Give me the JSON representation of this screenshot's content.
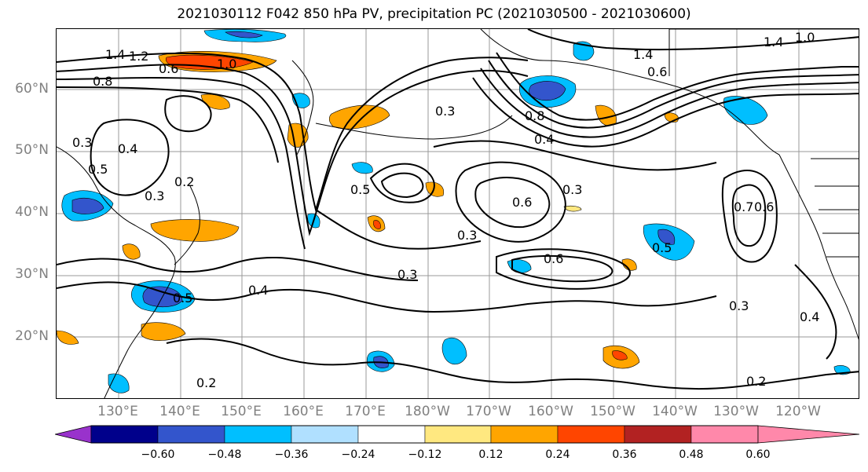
{
  "title": "2021030112 F042 850 hPa PV, precipitation PC (2021030500 - 2021030600)",
  "lat_labels": [
    "60°N",
    "50°N",
    "40°N",
    "30°N",
    "20°N"
  ],
  "lon_labels": [
    "130°E",
    "140°E",
    "150°E",
    "160°E",
    "170°E",
    "180°W",
    "170°W",
    "160°W",
    "150°W",
    "140°W",
    "130°W",
    "120°W"
  ],
  "contour_labels": [
    "1.4",
    "1.2",
    "0.8",
    "1.0",
    "0.6",
    "0.4",
    "0.3",
    "0.5",
    "0.2",
    "0.3",
    "0.4",
    "0.5",
    "0.6",
    "0.3",
    "0.4",
    "1.4",
    "0.6",
    "0.8",
    "0.3",
    "0.5",
    "0.6",
    "0.3",
    "0.7",
    "0.6",
    "0.5",
    "0.3",
    "0.2",
    "1.0",
    "1.4",
    "0.4",
    "0.3",
    "0.2"
  ],
  "colorbar": {
    "ticks": [
      "−0.60",
      "−0.48",
      "−0.36",
      "−0.24",
      "−0.12",
      "0.12",
      "0.24",
      "0.36",
      "0.48",
      "0.60"
    ],
    "colors": [
      "#9932CC",
      "#00008B",
      "#3355CC",
      "#00BFFF",
      "#B0E0FF",
      "#FFFFFF",
      "#FFE880",
      "#FFA500",
      "#FF4500",
      "#B22222",
      "#FF88AA"
    ]
  },
  "grid": true
}
